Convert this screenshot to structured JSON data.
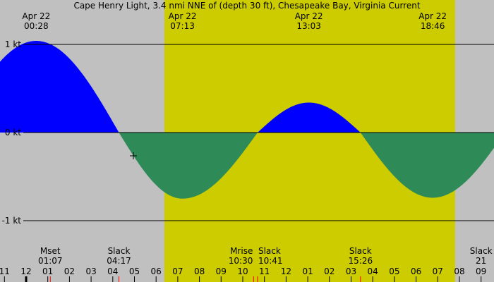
{
  "chart_data": {
    "type": "area",
    "title": "Cape Henry Light, 3.4 nmi NNE of (depth 30 ft), Chesapeake Bay, Virginia Current",
    "ylabel_ticks": [
      {
        "value": 1,
        "label": "1 kt"
      },
      {
        "value": 0,
        "label": "0 kt"
      },
      {
        "value": -1,
        "label": "-1 kt"
      }
    ],
    "ylim": [
      -1.5,
      1.5
    ],
    "x_ticks": [
      "11",
      "12",
      "01",
      "02",
      "03",
      "04",
      "05",
      "06",
      "07",
      "08",
      "09",
      "10",
      "11",
      "12",
      "01",
      "02",
      "03",
      "04",
      "05",
      "06",
      "07",
      "08",
      "09"
    ],
    "x_tick_hours": [
      -1,
      0,
      1,
      2,
      3,
      4,
      5,
      6,
      7,
      8,
      9,
      10,
      11,
      12,
      13,
      14,
      15,
      16,
      17,
      18,
      19,
      20,
      21
    ],
    "extremes": [
      {
        "date": "Apr 22",
        "time": "00:28",
        "value": 1.04,
        "kind": "max"
      },
      {
        "date": "Apr 22",
        "time": "07:13",
        "value": -0.75,
        "kind": "min"
      },
      {
        "date": "Apr 22",
        "time": "13:03",
        "value": 0.34,
        "kind": "max"
      },
      {
        "date": "Apr 22",
        "time": "18:46",
        "value": -0.74,
        "kind": "min"
      }
    ],
    "bottom_events": [
      {
        "label": "Mset",
        "time": "01:07"
      },
      {
        "label": "Slack",
        "time": "04:17"
      },
      {
        "label": "Mrise",
        "time": "10:30"
      },
      {
        "label": "Slack",
        "time": "10:41"
      },
      {
        "label": "Slack",
        "time": "15:26"
      },
      {
        "label": "Slack",
        "time": "21"
      }
    ],
    "slacks": [
      "04:17",
      "10:41",
      "15:26"
    ],
    "daylight": [
      "06:23",
      "19:48"
    ],
    "colors": {
      "background": "#c0c0c0",
      "daylight": "#cccc00",
      "flood": "#0000ff",
      "ebb": "#2e8b57",
      "event_tick": "#ff0000"
    }
  }
}
